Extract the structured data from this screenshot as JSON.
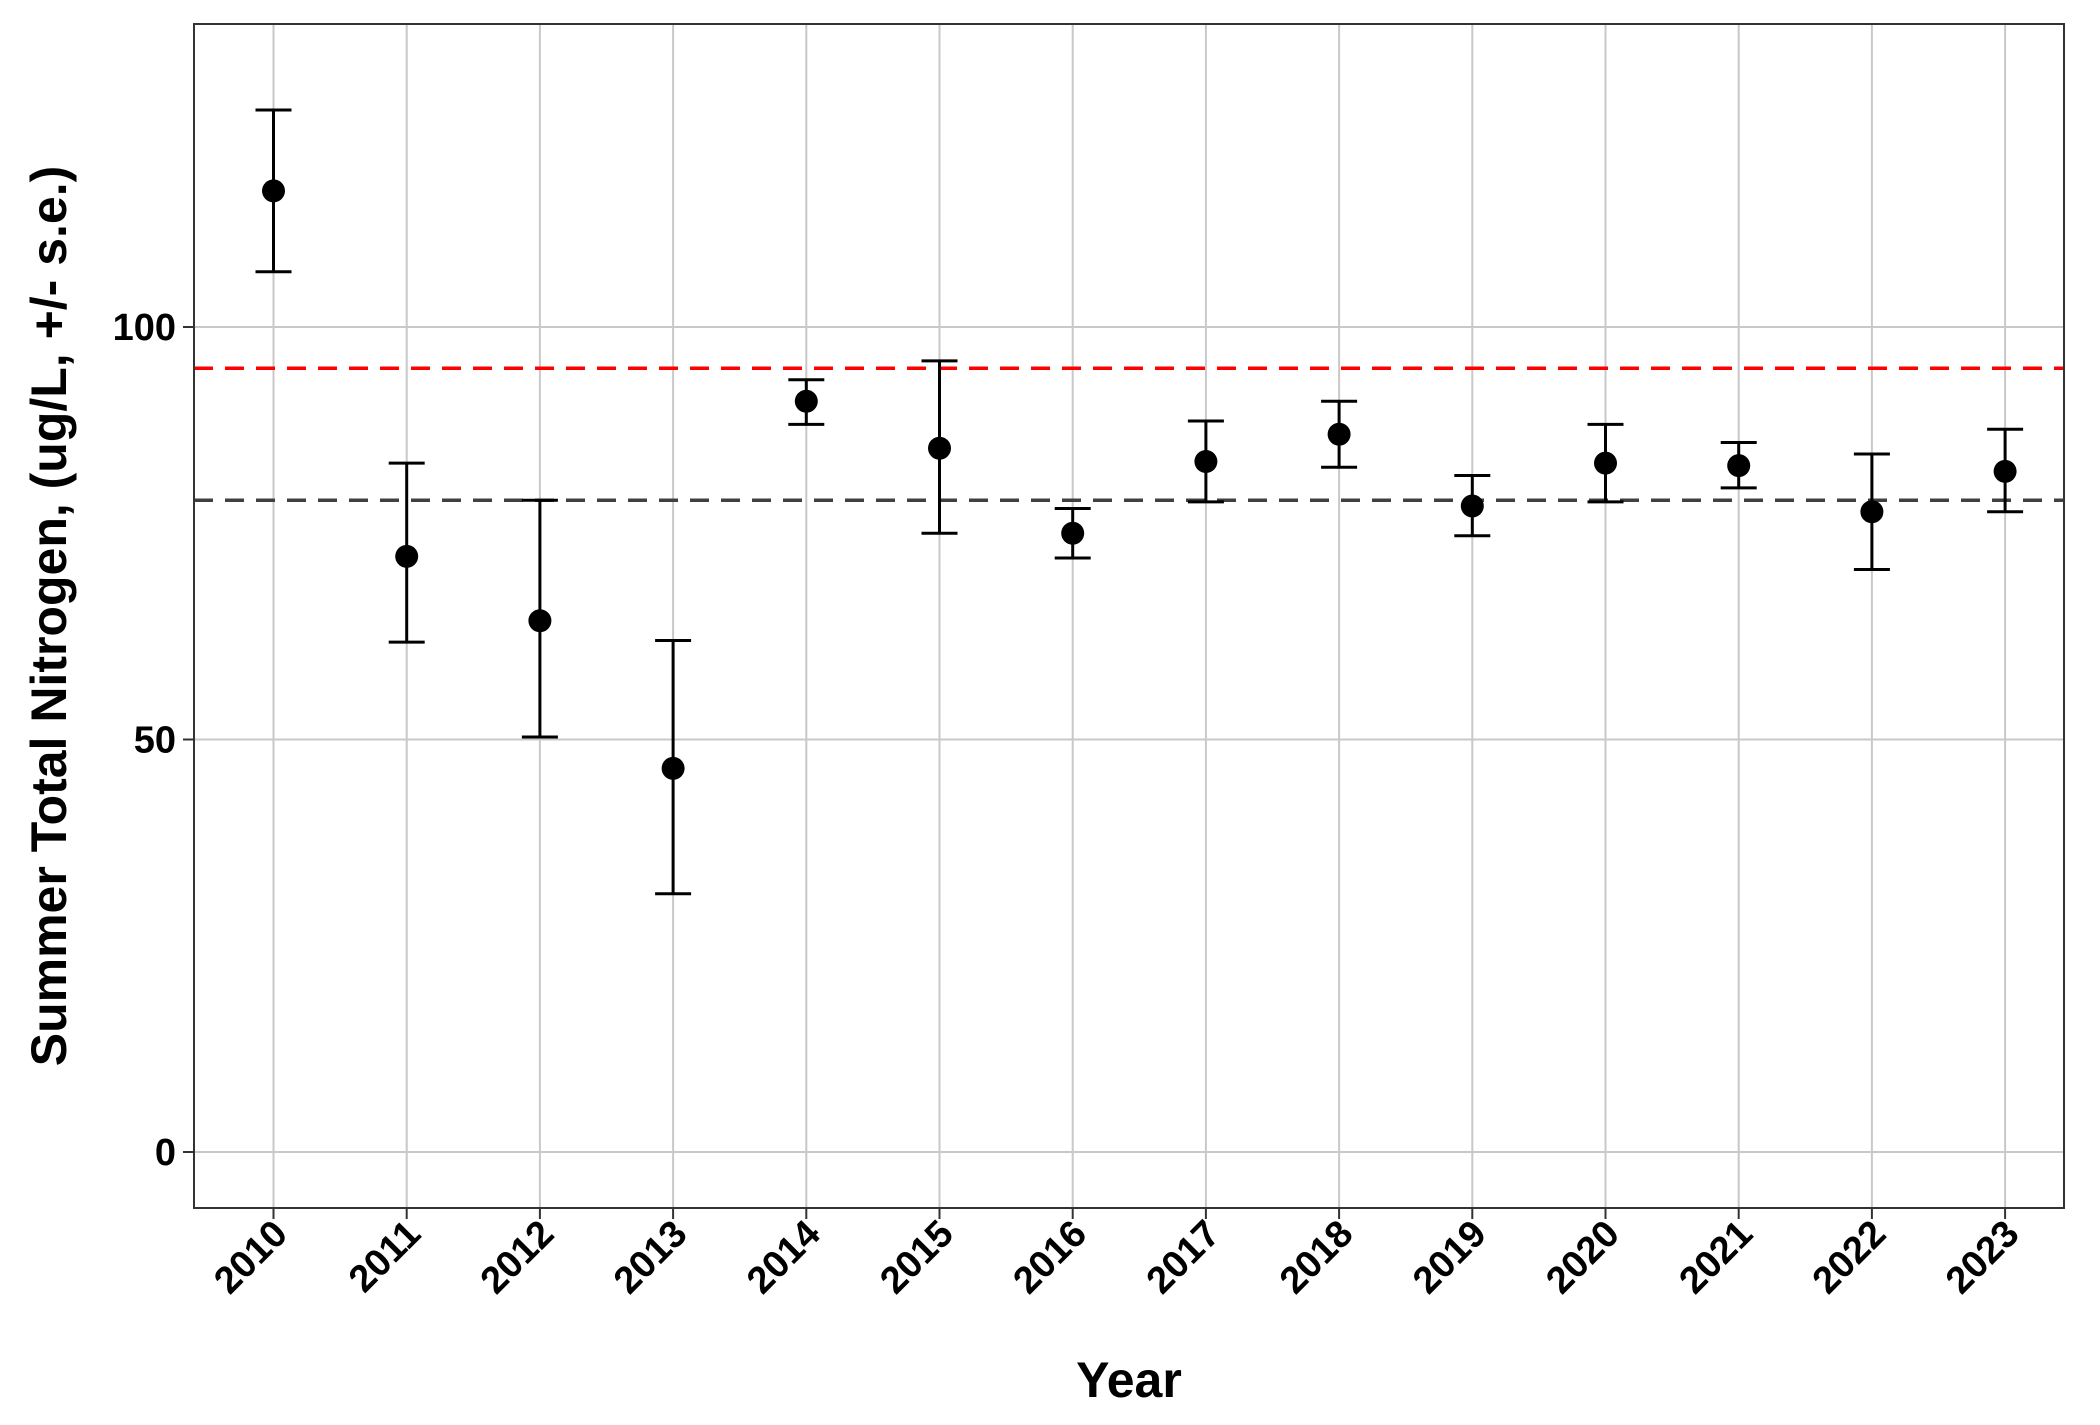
{
  "chart_data": {
    "type": "scatter",
    "title": "",
    "xlabel": "Year",
    "ylabel": "Summer Total Nitrogen, (ug/L, +/- s.e.)",
    "categories": [
      "2010",
      "2011",
      "2012",
      "2013",
      "2014",
      "2015",
      "2016",
      "2017",
      "2018",
      "2019",
      "2020",
      "2021",
      "2022",
      "2023"
    ],
    "series": [
      {
        "values": [
          116.5,
          72.2,
          64.4,
          46.5,
          91.0,
          85.3,
          75.0,
          83.7,
          87.0,
          78.3,
          83.5,
          83.2,
          77.6,
          82.5
        ],
        "error_lower": [
          106.7,
          61.8,
          50.3,
          31.3,
          88.2,
          75.0,
          72.0,
          78.8,
          83.0,
          74.7,
          78.8,
          80.5,
          70.6,
          77.6
        ],
        "error_upper": [
          126.3,
          83.5,
          79.0,
          62.0,
          93.6,
          95.9,
          78.0,
          88.6,
          91.0,
          82.0,
          88.2,
          86.0,
          84.6,
          87.6
        ],
        "color": "#000000"
      }
    ],
    "reference_lines": [
      {
        "y": 95.0,
        "color": "#ff0000",
        "style": "dashed"
      },
      {
        "y": 79.0,
        "color": "#404040",
        "style": "dashed"
      }
    ],
    "y_ticks": [
      "0",
      "50",
      "100"
    ],
    "ylim": [
      -6.5,
      136
    ],
    "grid": true,
    "legend": "none"
  }
}
